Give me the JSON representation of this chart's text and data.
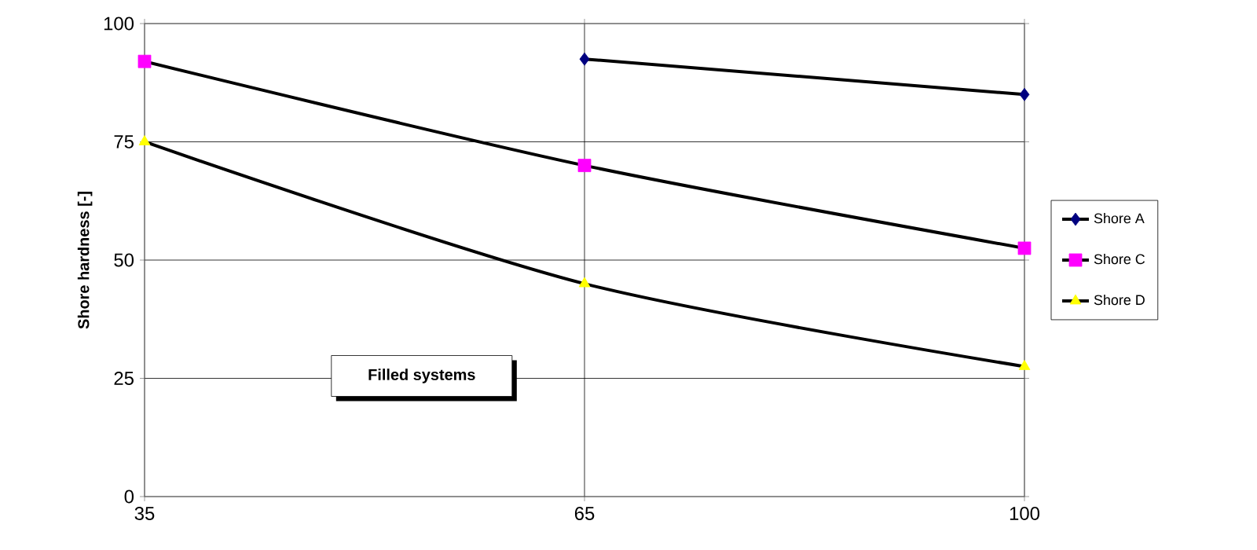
{
  "chart_data": {
    "type": "line",
    "ylabel": "Shore hardness [-]",
    "categories": [
      "35",
      "65",
      "100"
    ],
    "series": [
      {
        "name": "Shore A",
        "color": "#000080",
        "marker": "diamond",
        "values": [
          null,
          92.5,
          85
        ]
      },
      {
        "name": "Shore C",
        "color": "#ff00ff",
        "marker": "square",
        "values": [
          92,
          70,
          52.5
        ]
      },
      {
        "name": "Shore D",
        "color": "#ffff00",
        "marker": "triangle",
        "values": [
          75,
          45,
          27.5
        ]
      }
    ],
    "ylim": [
      0,
      100
    ],
    "yticks": [
      0,
      25,
      50,
      75,
      100
    ],
    "grid": true,
    "legend": "right",
    "line_style": "solid",
    "annotations": [
      "Filled systems"
    ]
  }
}
